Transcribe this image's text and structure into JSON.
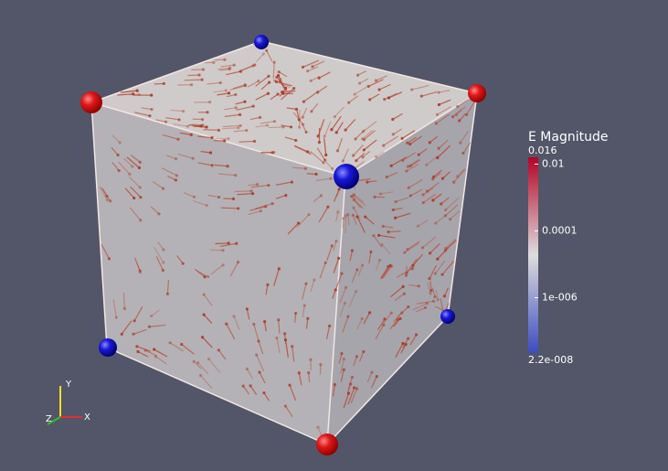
{
  "render_view": {
    "axes_labels": {
      "x": "X",
      "y": "Y",
      "z": "Z"
    }
  },
  "color_legend": {
    "title": "E Magnitude",
    "log_scale": true,
    "range": [
      0.016,
      {
        "value": 2.2e-08,
        "label": "2.2e-008"
      }
    ],
    "ticks": [
      0.01,
      0.0001,
      {
        "value": 1e-06,
        "label": "1e-006"
      }
    ],
    "colors": [
      "#3b4cc0",
      "#dddddd",
      "#b40426"
    ]
  }
}
